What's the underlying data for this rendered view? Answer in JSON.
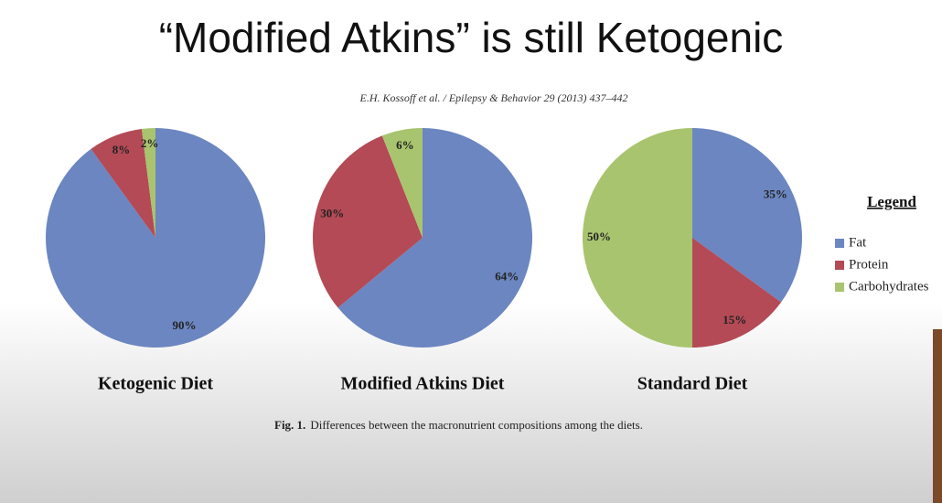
{
  "title": "“Modified Atkins” is still Ketogenic",
  "citation": "E.H. Kossoff et al. / Epilepsy & Behavior 29 (2013) 437–442",
  "legend_title": "Legend",
  "caption_label": "Fig. 1.",
  "caption_text": "Differences between the macronutrient compositions among the diets.",
  "chart_data": [
    {
      "type": "pie",
      "title": "Ketogenic Diet",
      "categories": [
        "Fat",
        "Protein",
        "Carbohydrates"
      ],
      "values": [
        90,
        8,
        2
      ],
      "value_labels": [
        "90%",
        "8%",
        "2%"
      ],
      "colors": [
        "#6b86c0",
        "#b34a56",
        "#a8c46e"
      ]
    },
    {
      "type": "pie",
      "title": "Modified Atkins Diet",
      "categories": [
        "Fat",
        "Protein",
        "Carbohydrates"
      ],
      "values": [
        64,
        30,
        6
      ],
      "value_labels": [
        "64%",
        "30%",
        "6%"
      ],
      "colors": [
        "#6b86c0",
        "#b34a56",
        "#a8c46e"
      ]
    },
    {
      "type": "pie",
      "title": "Standard Diet",
      "categories": [
        "Fat",
        "Protein",
        "Carbohydrates"
      ],
      "values": [
        35,
        15,
        50
      ],
      "value_labels": [
        "35%",
        "15%",
        "50%"
      ],
      "colors": [
        "#6b86c0",
        "#b34a56",
        "#a8c46e"
      ]
    }
  ]
}
